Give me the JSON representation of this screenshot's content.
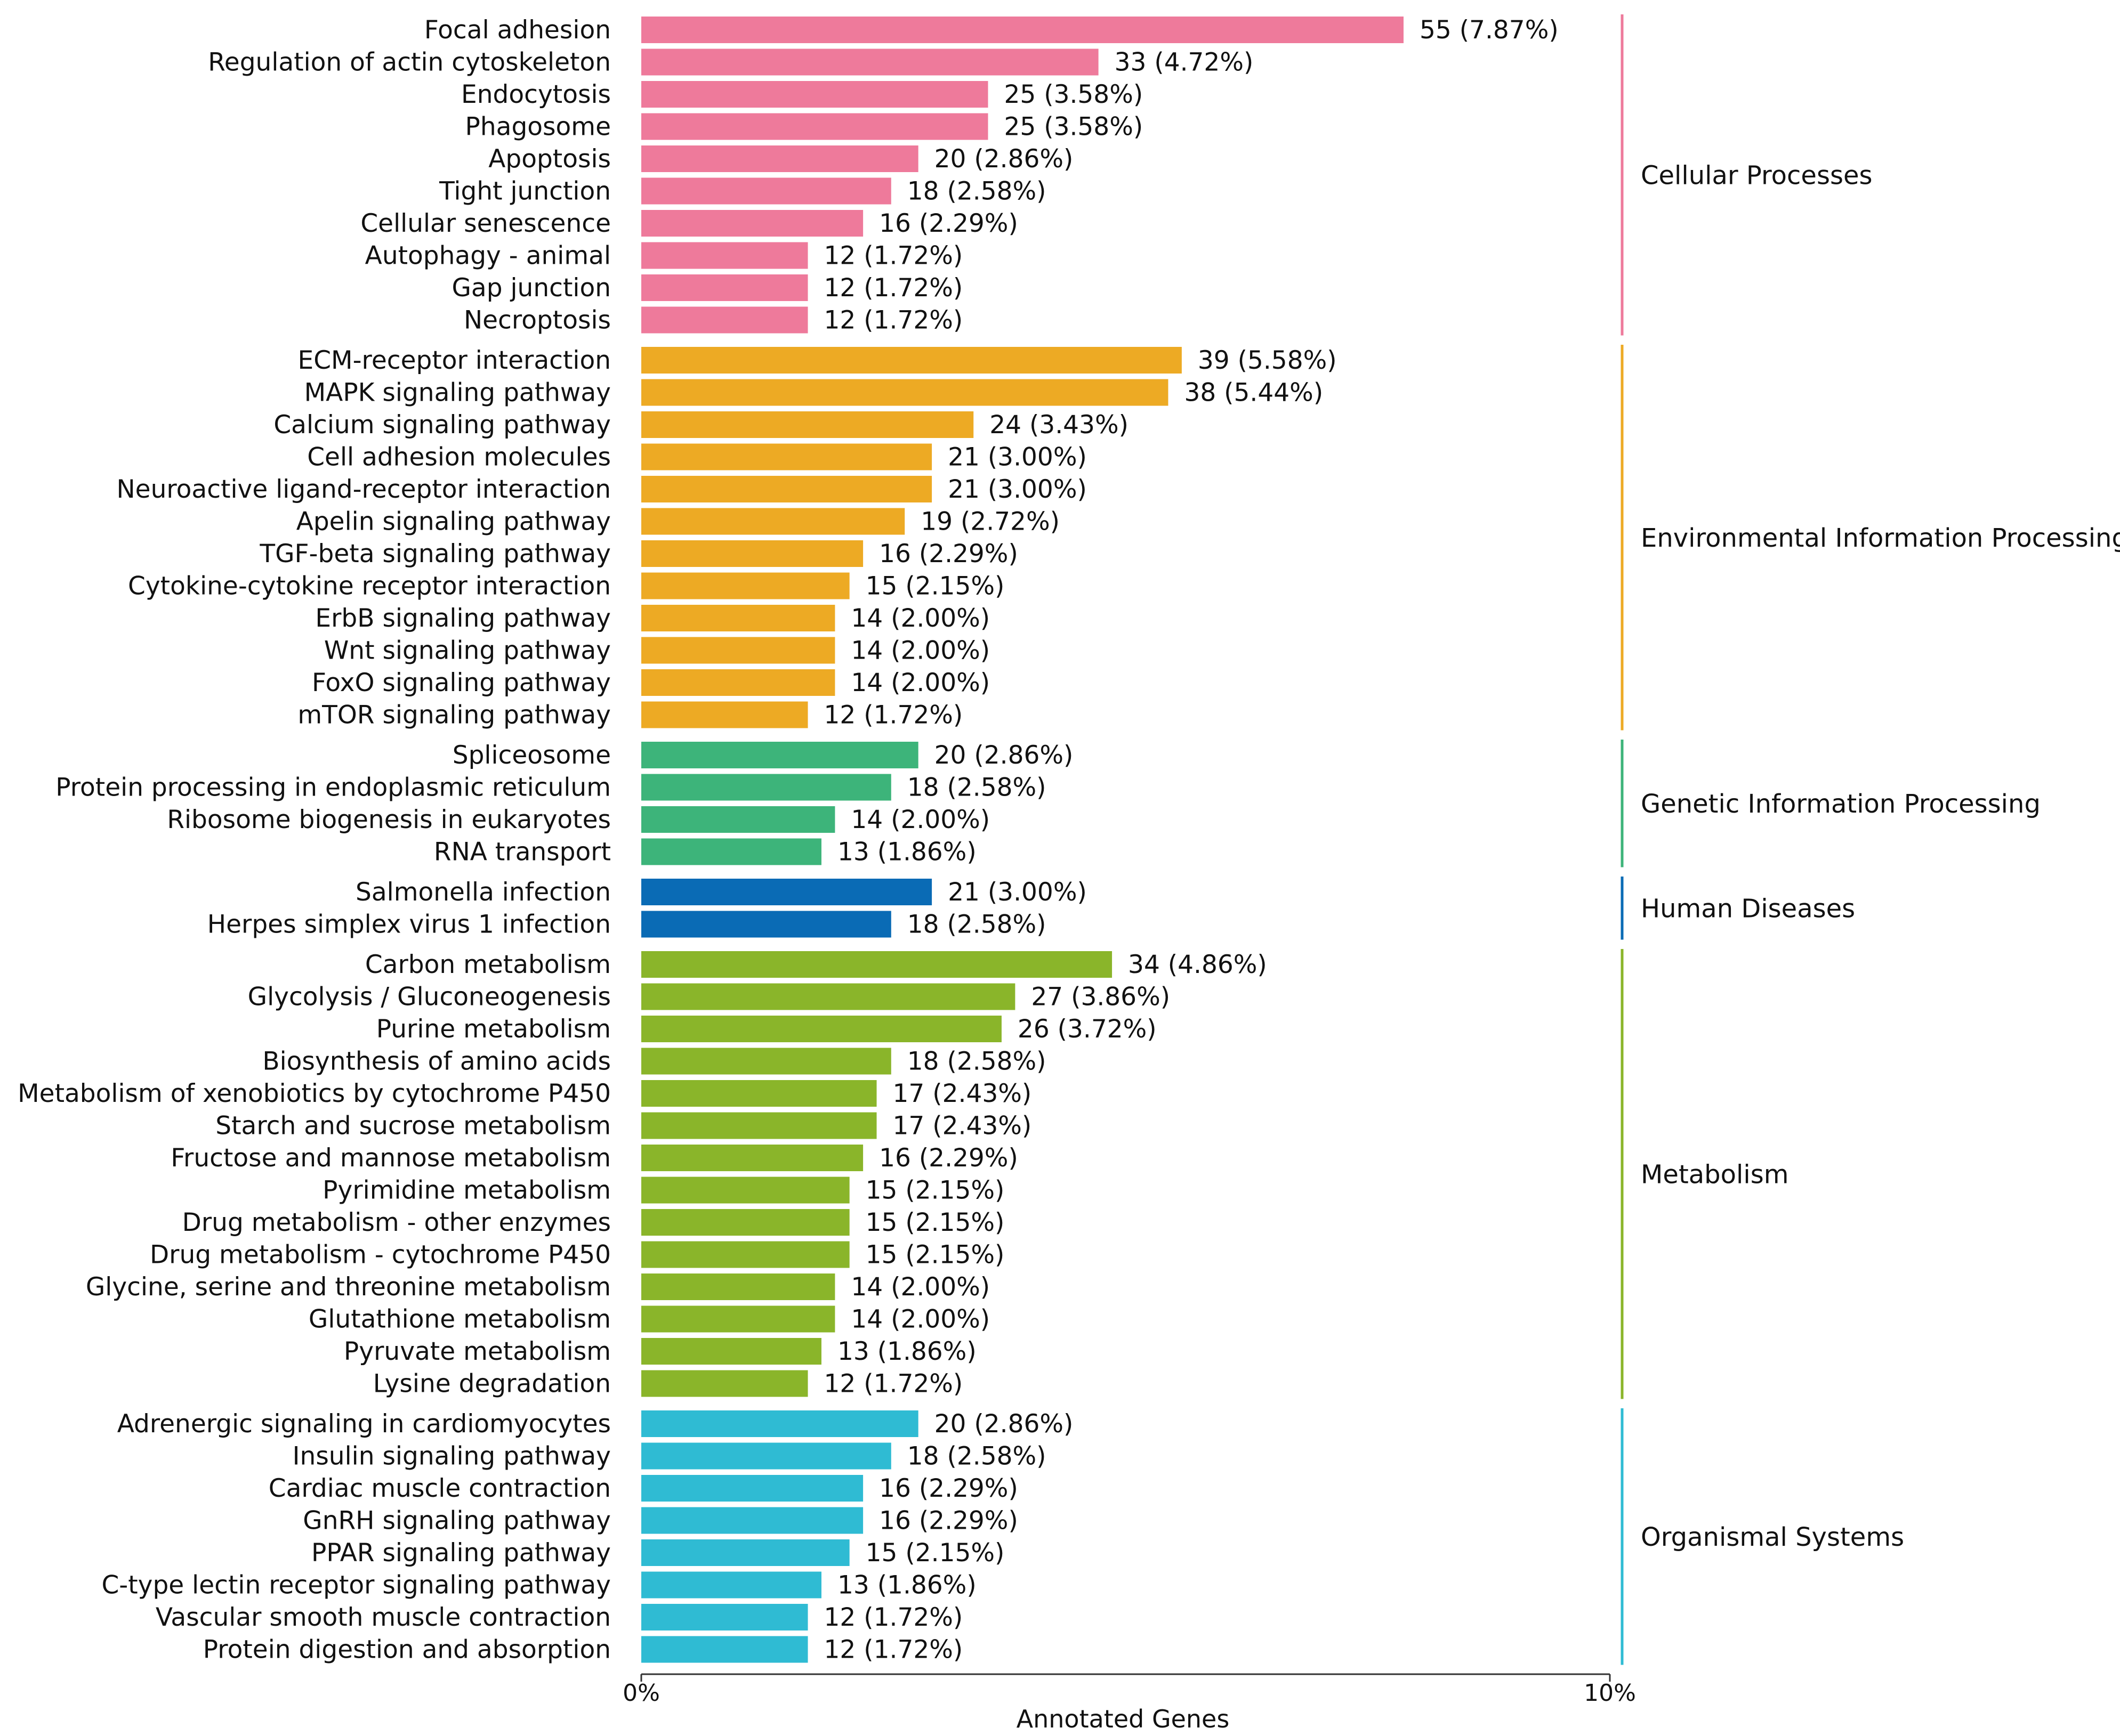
{
  "chart_data": {
    "type": "bar",
    "orientation": "horizontal",
    "title": "",
    "xlabel": "Annotated Genes",
    "ylabel": "",
    "xlim": [
      0,
      10
    ],
    "x_unit": "%",
    "x_ticks": [
      "0%",
      "10%"
    ],
    "groups": [
      {
        "name": "Cellular Processes",
        "color": "#EE7A9B",
        "items": [
          {
            "label": "Focal adhesion",
            "count": 55,
            "percent": 7.87,
            "text": "55 (7.87%)"
          },
          {
            "label": "Regulation of actin cytoskeleton",
            "count": 33,
            "percent": 4.72,
            "text": "33 (4.72%)"
          },
          {
            "label": "Endocytosis",
            "count": 25,
            "percent": 3.58,
            "text": "25 (3.58%)"
          },
          {
            "label": "Phagosome",
            "count": 25,
            "percent": 3.58,
            "text": "25 (3.58%)"
          },
          {
            "label": "Apoptosis",
            "count": 20,
            "percent": 2.86,
            "text": "20 (2.86%)"
          },
          {
            "label": "Tight junction",
            "count": 18,
            "percent": 2.58,
            "text": "18 (2.58%)"
          },
          {
            "label": "Cellular senescence",
            "count": 16,
            "percent": 2.29,
            "text": "16 (2.29%)"
          },
          {
            "label": "Autophagy - animal",
            "count": 12,
            "percent": 1.72,
            "text": "12 (1.72%)"
          },
          {
            "label": "Gap junction",
            "count": 12,
            "percent": 1.72,
            "text": "12 (1.72%)"
          },
          {
            "label": "Necroptosis",
            "count": 12,
            "percent": 1.72,
            "text": "12 (1.72%)"
          }
        ]
      },
      {
        "name": "Environmental Information Processing",
        "color": "#EDAA24",
        "items": [
          {
            "label": "ECM-receptor interaction",
            "count": 39,
            "percent": 5.58,
            "text": "39 (5.58%)"
          },
          {
            "label": "MAPK signaling pathway",
            "count": 38,
            "percent": 5.44,
            "text": "38 (5.44%)"
          },
          {
            "label": "Calcium signaling pathway",
            "count": 24,
            "percent": 3.43,
            "text": "24 (3.43%)"
          },
          {
            "label": "Cell adhesion molecules",
            "count": 21,
            "percent": 3.0,
            "text": "21 (3.00%)"
          },
          {
            "label": "Neuroactive ligand-receptor interaction",
            "count": 21,
            "percent": 3.0,
            "text": "21 (3.00%)"
          },
          {
            "label": "Apelin signaling pathway",
            "count": 19,
            "percent": 2.72,
            "text": "19 (2.72%)"
          },
          {
            "label": "TGF-beta signaling pathway",
            "count": 16,
            "percent": 2.29,
            "text": "16 (2.29%)"
          },
          {
            "label": "Cytokine-cytokine receptor interaction",
            "count": 15,
            "percent": 2.15,
            "text": "15 (2.15%)"
          },
          {
            "label": "ErbB signaling pathway",
            "count": 14,
            "percent": 2.0,
            "text": "14 (2.00%)"
          },
          {
            "label": "Wnt signaling pathway",
            "count": 14,
            "percent": 2.0,
            "text": "14 (2.00%)"
          },
          {
            "label": "FoxO signaling pathway",
            "count": 14,
            "percent": 2.0,
            "text": "14 (2.00%)"
          },
          {
            "label": "mTOR signaling pathway",
            "count": 12,
            "percent": 1.72,
            "text": "12 (1.72%)"
          }
        ]
      },
      {
        "name": "Genetic Information Processing",
        "color": "#3DB47A",
        "items": [
          {
            "label": "Spliceosome",
            "count": 20,
            "percent": 2.86,
            "text": "20 (2.86%)"
          },
          {
            "label": "Protein processing in endoplasmic reticulum",
            "count": 18,
            "percent": 2.58,
            "text": "18 (2.58%)"
          },
          {
            "label": "Ribosome biogenesis in eukaryotes",
            "count": 14,
            "percent": 2.0,
            "text": "14 (2.00%)"
          },
          {
            "label": "RNA transport",
            "count": 13,
            "percent": 1.86,
            "text": "13 (1.86%)"
          }
        ]
      },
      {
        "name": "Human Diseases",
        "color": "#0A6BB5",
        "items": [
          {
            "label": "Salmonella infection",
            "count": 21,
            "percent": 3.0,
            "text": "21 (3.00%)"
          },
          {
            "label": "Herpes simplex virus 1 infection",
            "count": 18,
            "percent": 2.58,
            "text": "18 (2.58%)"
          }
        ]
      },
      {
        "name": "Metabolism",
        "color": "#8AB52A",
        "items": [
          {
            "label": "Carbon metabolism",
            "count": 34,
            "percent": 4.86,
            "text": "34 (4.86%)"
          },
          {
            "label": "Glycolysis / Gluconeogenesis",
            "count": 27,
            "percent": 3.86,
            "text": "27 (3.86%)"
          },
          {
            "label": "Purine metabolism",
            "count": 26,
            "percent": 3.72,
            "text": "26 (3.72%)"
          },
          {
            "label": "Biosynthesis of amino acids",
            "count": 18,
            "percent": 2.58,
            "text": "18 (2.58%)"
          },
          {
            "label": "Metabolism of xenobiotics by cytochrome P450",
            "count": 17,
            "percent": 2.43,
            "text": "17 (2.43%)"
          },
          {
            "label": "Starch and sucrose metabolism",
            "count": 17,
            "percent": 2.43,
            "text": "17 (2.43%)"
          },
          {
            "label": "Fructose and mannose metabolism",
            "count": 16,
            "percent": 2.29,
            "text": "16 (2.29%)"
          },
          {
            "label": "Pyrimidine metabolism",
            "count": 15,
            "percent": 2.15,
            "text": "15 (2.15%)"
          },
          {
            "label": "Drug metabolism - other enzymes",
            "count": 15,
            "percent": 2.15,
            "text": "15 (2.15%)"
          },
          {
            "label": "Drug metabolism - cytochrome P450",
            "count": 15,
            "percent": 2.15,
            "text": "15 (2.15%)"
          },
          {
            "label": "Glycine, serine and threonine metabolism",
            "count": 14,
            "percent": 2.0,
            "text": "14 (2.00%)"
          },
          {
            "label": "Glutathione metabolism",
            "count": 14,
            "percent": 2.0,
            "text": "14 (2.00%)"
          },
          {
            "label": "Pyruvate metabolism",
            "count": 13,
            "percent": 1.86,
            "text": "13 (1.86%)"
          },
          {
            "label": "Lysine degradation",
            "count": 12,
            "percent": 1.72,
            "text": "12 (1.72%)"
          }
        ]
      },
      {
        "name": "Organismal Systems",
        "color": "#2FBBD3",
        "items": [
          {
            "label": "Adrenergic signaling in cardiomyocytes",
            "count": 20,
            "percent": 2.86,
            "text": "20 (2.86%)"
          },
          {
            "label": "Insulin signaling pathway",
            "count": 18,
            "percent": 2.58,
            "text": "18 (2.58%)"
          },
          {
            "label": "Cardiac muscle contraction",
            "count": 16,
            "percent": 2.29,
            "text": "16 (2.29%)"
          },
          {
            "label": "GnRH signaling pathway",
            "count": 16,
            "percent": 2.29,
            "text": "16 (2.29%)"
          },
          {
            "label": "PPAR signaling pathway",
            "count": 15,
            "percent": 2.15,
            "text": "15 (2.15%)"
          },
          {
            "label": "C-type lectin receptor signaling pathway",
            "count": 13,
            "percent": 1.86,
            "text": "13 (1.86%)"
          },
          {
            "label": "Vascular smooth muscle contraction",
            "count": 12,
            "percent": 1.72,
            "text": "12 (1.72%)"
          },
          {
            "label": "Protein digestion and absorption",
            "count": 12,
            "percent": 1.72,
            "text": "12 (1.72%)"
          }
        ]
      }
    ]
  }
}
